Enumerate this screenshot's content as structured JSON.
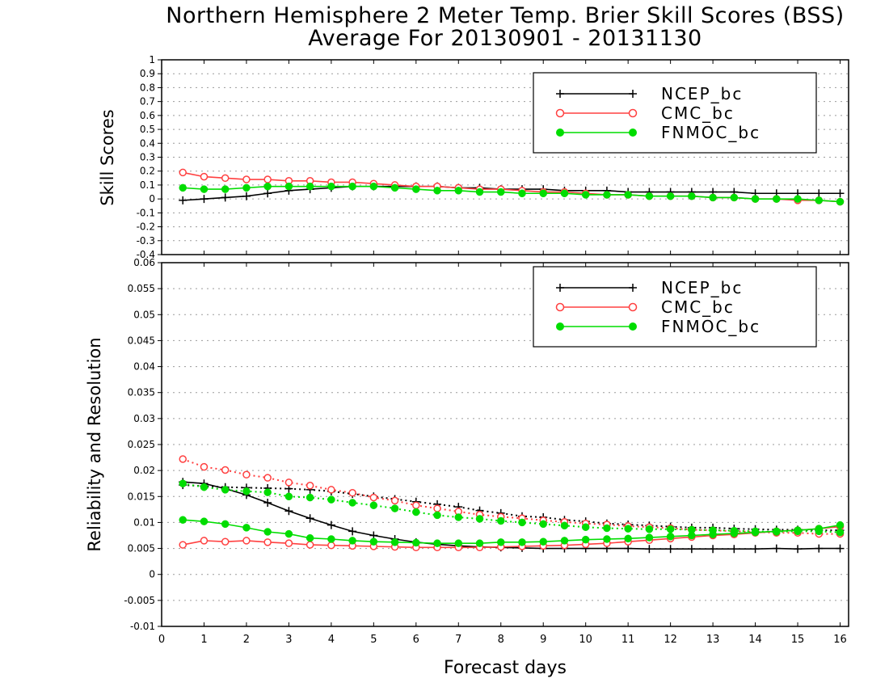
{
  "title_line_1": "Northern Hemisphere 2 Meter Temp. Brier Skill Scores (BSS)",
  "title_line_2": "Average For 20130901 - 20131130",
  "chart_data": [
    {
      "type": "line",
      "ylabel": "Skill Scores",
      "xlabel": "",
      "xlim": [
        0,
        16.2
      ],
      "ylim": [
        -0.4,
        1
      ],
      "yticks": [
        "1",
        "0.9",
        "0.8",
        "0.7",
        "0.6",
        "0.5",
        "0.4",
        "0.3",
        "0.2",
        "0.1",
        "0",
        "-0.1",
        "-0.2",
        "-0.3",
        "-0.4"
      ],
      "ytick_values": [
        1,
        0.9,
        0.8,
        0.7,
        0.6,
        0.5,
        0.4,
        0.3,
        0.2,
        0.1,
        0,
        -0.1,
        -0.2,
        -0.3,
        -0.4
      ],
      "grid": "horizontal dotted",
      "legend_position": "top-right",
      "x": [
        0.5,
        1,
        1.5,
        2,
        2.5,
        3,
        3.5,
        4,
        4.5,
        5,
        5.5,
        6,
        6.5,
        7,
        7.5,
        8,
        8.5,
        9,
        9.5,
        10,
        10.5,
        11,
        11.5,
        12,
        12.5,
        13,
        13.5,
        14,
        14.5,
        15,
        15.5,
        16
      ],
      "series": [
        {
          "name": "NCEP_bc",
          "color": "#000000",
          "marker": "plus",
          "style": "solid",
          "values": [
            -0.01,
            0.0,
            0.01,
            0.02,
            0.04,
            0.06,
            0.07,
            0.08,
            0.09,
            0.09,
            0.09,
            0.09,
            0.09,
            0.08,
            0.08,
            0.07,
            0.07,
            0.07,
            0.06,
            0.06,
            0.06,
            0.05,
            0.05,
            0.05,
            0.05,
            0.05,
            0.05,
            0.04,
            0.04,
            0.04,
            0.04,
            0.04
          ]
        },
        {
          "name": "CMC_bc",
          "color": "#ff4040",
          "marker": "open-circle",
          "style": "solid",
          "values": [
            0.19,
            0.16,
            0.15,
            0.14,
            0.14,
            0.13,
            0.13,
            0.12,
            0.12,
            0.11,
            0.1,
            0.09,
            0.09,
            0.08,
            0.07,
            0.07,
            0.06,
            0.05,
            0.05,
            0.04,
            0.03,
            0.03,
            0.02,
            0.02,
            0.02,
            0.01,
            0.01,
            0.0,
            0.0,
            -0.01,
            -0.01,
            -0.02
          ]
        },
        {
          "name": "FNMOC_bc",
          "color": "#00dd00",
          "marker": "filled-circle",
          "style": "solid",
          "values": [
            0.08,
            0.07,
            0.07,
            0.08,
            0.09,
            0.09,
            0.09,
            0.09,
            0.09,
            0.09,
            0.08,
            0.07,
            0.06,
            0.06,
            0.05,
            0.05,
            0.04,
            0.04,
            0.04,
            0.03,
            0.03,
            0.03,
            0.02,
            0.02,
            0.02,
            0.01,
            0.01,
            0.0,
            0.0,
            0.0,
            -0.01,
            -0.02
          ]
        }
      ]
    },
    {
      "type": "line",
      "ylabel": "Reliability and Resolution",
      "xlabel": "Forecast days",
      "xlim": [
        0,
        16.2
      ],
      "ylim": [
        -0.01,
        0.06
      ],
      "yticks": [
        "0.06",
        "0.055",
        "0.05",
        "0.045",
        "0.04",
        "0.035",
        "0.03",
        "0.025",
        "0.02",
        "0.015",
        "0.01",
        "0.005",
        "0",
        "-0.005",
        "-0.01"
      ],
      "ytick_values": [
        0.06,
        0.055,
        0.05,
        0.045,
        0.04,
        0.035,
        0.03,
        0.025,
        0.02,
        0.015,
        0.01,
        0.005,
        0,
        -0.005,
        -0.01
      ],
      "xticks": [
        "0",
        "1",
        "2",
        "3",
        "4",
        "5",
        "6",
        "7",
        "8",
        "9",
        "10",
        "11",
        "12",
        "13",
        "14",
        "15",
        "16"
      ],
      "xtick_values": [
        0,
        1,
        2,
        3,
        4,
        5,
        6,
        7,
        8,
        9,
        10,
        11,
        12,
        13,
        14,
        15,
        16
      ],
      "grid": "horizontal dotted",
      "legend_position": "top-right",
      "x": [
        0.5,
        1,
        1.5,
        2,
        2.5,
        3,
        3.5,
        4,
        4.5,
        5,
        5.5,
        6,
        6.5,
        7,
        7.5,
        8,
        8.5,
        9,
        9.5,
        10,
        10.5,
        11,
        11.5,
        12,
        12.5,
        13,
        13.5,
        14,
        14.5,
        15,
        15.5,
        16
      ],
      "legend": [
        {
          "name": "NCEP_bc",
          "color": "#000000",
          "marker": "plus"
        },
        {
          "name": "CMC_bc",
          "color": "#ff4040",
          "marker": "open-circle"
        },
        {
          "name": "FNMOC_bc",
          "color": "#00dd00",
          "marker": "filled-circle"
        }
      ],
      "series": [
        {
          "name": "NCEP_bc",
          "color": "#000000",
          "marker": "plus",
          "style": "dotted",
          "values": [
            0.0172,
            0.017,
            0.0168,
            0.0167,
            0.0166,
            0.0165,
            0.0163,
            0.016,
            0.0155,
            0.015,
            0.0145,
            0.014,
            0.0135,
            0.013,
            0.0123,
            0.0118,
            0.0112,
            0.011,
            0.0105,
            0.0102,
            0.0098,
            0.0096,
            0.0094,
            0.0092,
            0.009,
            0.009,
            0.0088,
            0.0087,
            0.0086,
            0.0086,
            0.0085,
            0.0085
          ]
        },
        {
          "name": "NCEP_bc",
          "color": "#000000",
          "marker": "plus",
          "style": "solid",
          "values": [
            0.0178,
            0.0175,
            0.0165,
            0.0153,
            0.0138,
            0.0122,
            0.0108,
            0.0095,
            0.0083,
            0.0075,
            0.0068,
            0.0062,
            0.0058,
            0.0055,
            0.0053,
            0.0052,
            0.0051,
            0.005,
            0.005,
            0.005,
            0.005,
            0.005,
            0.0049,
            0.0049,
            0.0049,
            0.0049,
            0.0049,
            0.0049,
            0.005,
            0.0049,
            0.005,
            0.005
          ]
        },
        {
          "name": "CMC_bc",
          "color": "#ff4040",
          "marker": "open-circle",
          "style": "dotted",
          "values": [
            0.0222,
            0.0207,
            0.0201,
            0.0192,
            0.0186,
            0.0177,
            0.0171,
            0.0163,
            0.0157,
            0.0148,
            0.0142,
            0.0133,
            0.0127,
            0.0121,
            0.0115,
            0.0111,
            0.0108,
            0.0104,
            0.0101,
            0.0098,
            0.0096,
            0.0093,
            0.0091,
            0.0089,
            0.0086,
            0.0085,
            0.0083,
            0.0082,
            0.008,
            0.008,
            0.0078,
            0.0078
          ]
        },
        {
          "name": "CMC_bc",
          "color": "#ff4040",
          "marker": "open-circle",
          "style": "solid",
          "values": [
            0.0057,
            0.0065,
            0.0063,
            0.0065,
            0.0062,
            0.006,
            0.0057,
            0.0056,
            0.0055,
            0.0054,
            0.0053,
            0.0052,
            0.0052,
            0.0052,
            0.0052,
            0.0053,
            0.0054,
            0.0055,
            0.0056,
            0.0058,
            0.006,
            0.0063,
            0.0066,
            0.0069,
            0.0072,
            0.0075,
            0.0077,
            0.008,
            0.0083,
            0.0085,
            0.0088,
            0.0092
          ]
        },
        {
          "name": "FNMOC_bc",
          "color": "#00dd00",
          "marker": "filled-circle",
          "style": "dotted",
          "values": [
            0.0175,
            0.0168,
            0.0163,
            0.016,
            0.0158,
            0.015,
            0.0148,
            0.0144,
            0.0138,
            0.0133,
            0.0127,
            0.012,
            0.0114,
            0.011,
            0.0107,
            0.0103,
            0.01,
            0.0097,
            0.0094,
            0.0091,
            0.0089,
            0.0088,
            0.0087,
            0.0087,
            0.0086,
            0.0085,
            0.0084,
            0.0083,
            0.0082,
            0.0083,
            0.0083,
            0.0081
          ]
        },
        {
          "name": "FNMOC_bc",
          "color": "#00dd00",
          "marker": "filled-circle",
          "style": "solid",
          "values": [
            0.0105,
            0.0102,
            0.0097,
            0.009,
            0.0082,
            0.0078,
            0.007,
            0.0068,
            0.0065,
            0.0063,
            0.0062,
            0.0061,
            0.006,
            0.006,
            0.006,
            0.0062,
            0.0062,
            0.0063,
            0.0065,
            0.0067,
            0.0068,
            0.0069,
            0.0071,
            0.0073,
            0.0075,
            0.0077,
            0.0079,
            0.0081,
            0.0083,
            0.0085,
            0.0088,
            0.0095
          ]
        }
      ]
    }
  ]
}
